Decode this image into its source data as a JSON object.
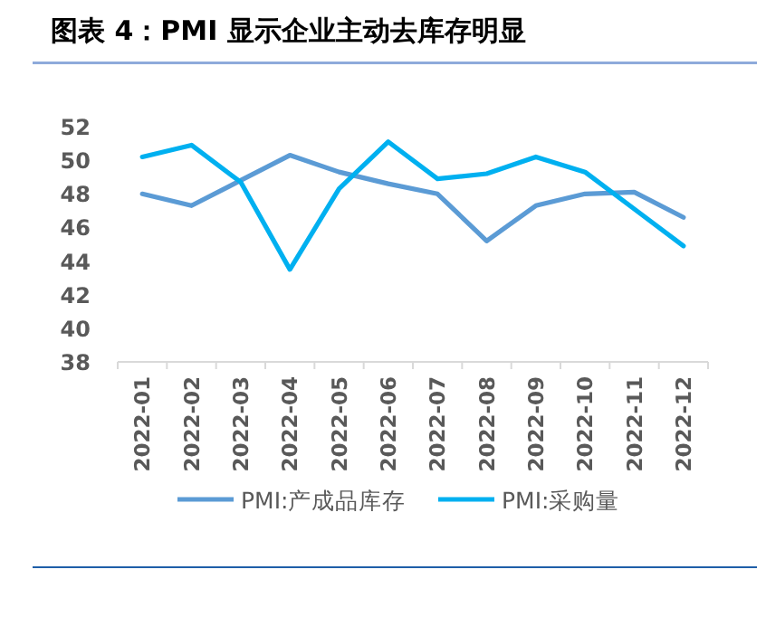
{
  "chart_data": {
    "type": "line",
    "title": "图表 4：PMI 显示企业主动去库存明显",
    "categories": [
      "2022-01",
      "2022-02",
      "2022-03",
      "2022-04",
      "2022-05",
      "2022-06",
      "2022-07",
      "2022-08",
      "2022-09",
      "2022-10",
      "2022-11",
      "2022-12"
    ],
    "series": [
      {
        "name": "PMI:产成品库存",
        "color": "#5b9bd5",
        "values": [
          48.0,
          47.3,
          48.8,
          50.3,
          49.3,
          48.6,
          48.0,
          45.2,
          47.3,
          48.0,
          48.1,
          46.6
        ]
      },
      {
        "name": "PMI:采购量",
        "color": "#00b0f0",
        "values": [
          50.2,
          50.9,
          48.7,
          43.5,
          48.3,
          51.1,
          48.9,
          49.2,
          50.2,
          49.3,
          47.1,
          44.9
        ]
      }
    ],
    "ylim": [
      38,
      52
    ],
    "yticks": [
      38,
      40,
      42,
      44,
      46,
      48,
      50,
      52
    ],
    "grid": false,
    "legend": "bottom",
    "marker": "none",
    "line_style": "solid"
  }
}
